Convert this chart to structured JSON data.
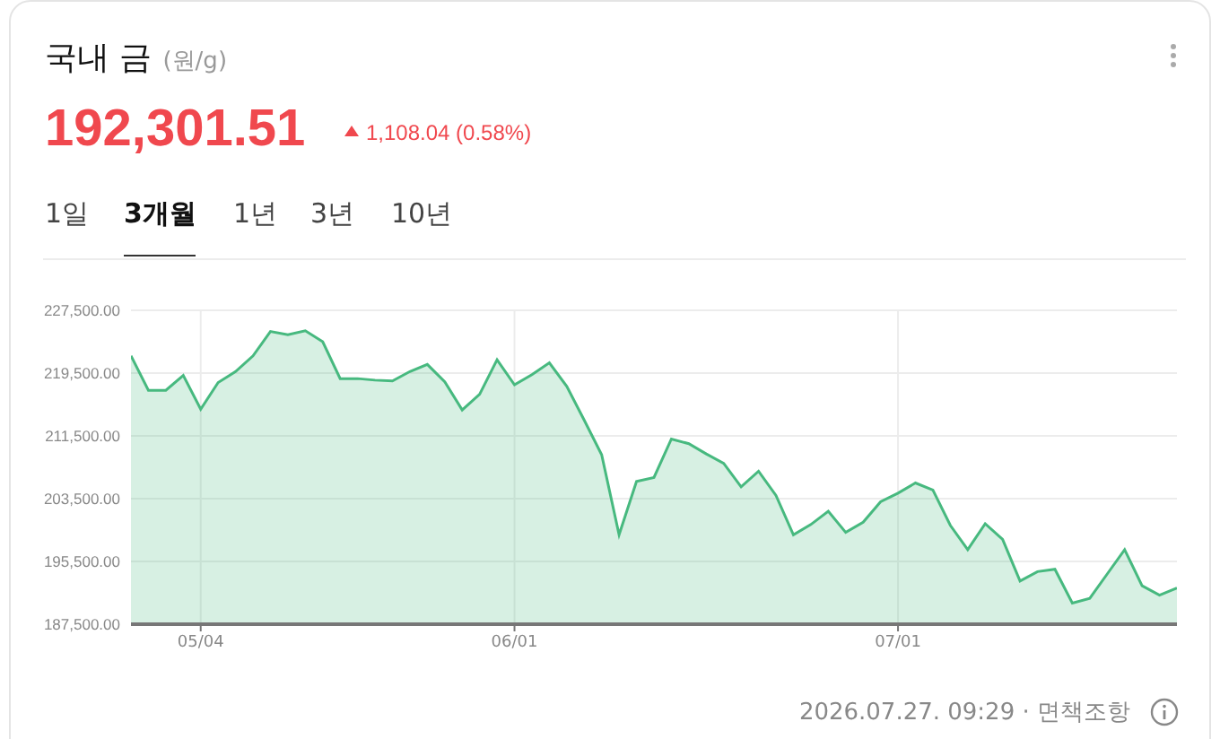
{
  "chart_data": {
    "type": "area",
    "title": "국내 금",
    "subtitle": "(원/g)",
    "annotations": [
      "192,301.51",
      "1,108.04 (0.58%)",
      "1일",
      "3개월",
      "1년",
      "3년",
      "10년",
      "2026.07.27. 09:29 · 면책조항"
    ],
    "categories": [
      null,
      null,
      null,
      null,
      "05/04",
      null,
      null,
      null,
      null,
      null,
      null,
      null,
      null,
      null,
      null,
      null,
      null,
      null,
      null,
      null,
      null,
      null,
      "06/01",
      null,
      null,
      null,
      null,
      null,
      null,
      null,
      null,
      null,
      null,
      null,
      null,
      null,
      null,
      null,
      null,
      null,
      null,
      null,
      null,
      null,
      "07/01",
      null,
      null,
      null,
      null,
      null,
      null,
      null,
      null,
      null,
      null,
      null,
      null,
      null,
      null,
      null,
      null
    ],
    "series": [
      {
        "color": "#47b97f",
        "values": [
          221700,
          217300,
          217300,
          219200,
          214900,
          218300,
          219700,
          221700,
          224800,
          224400,
          224900,
          223500,
          218800,
          218800,
          218600,
          218500,
          219700,
          220600,
          218400,
          214800,
          216800,
          221200,
          218000,
          219300,
          220800,
          217800,
          213500,
          209100,
          198900,
          205700,
          206200,
          211100,
          210500,
          209200,
          208000,
          205000,
          207000,
          203900,
          198900,
          200200,
          201900,
          199200,
          200500,
          203100,
          204200,
          205500,
          204600,
          200100,
          197000,
          200300,
          198300,
          193000,
          194200,
          194500,
          190200,
          190800,
          193900,
          197000,
          192400,
          191200,
          192100
        ]
      }
    ],
    "ylim": [
      187500,
      227500
    ],
    "yticks": [
      {
        "value": 187500,
        "label": "187,500.00"
      },
      {
        "value": 195500,
        "label": "195,500.00"
      },
      {
        "value": 203500,
        "label": "203,500.00"
      },
      {
        "value": 211500,
        "label": "211,500.00"
      },
      {
        "value": 219500,
        "label": "219,500.00"
      },
      {
        "value": 227500,
        "label": "227,500.00"
      }
    ],
    "grid": true,
    "legend": false
  }
}
